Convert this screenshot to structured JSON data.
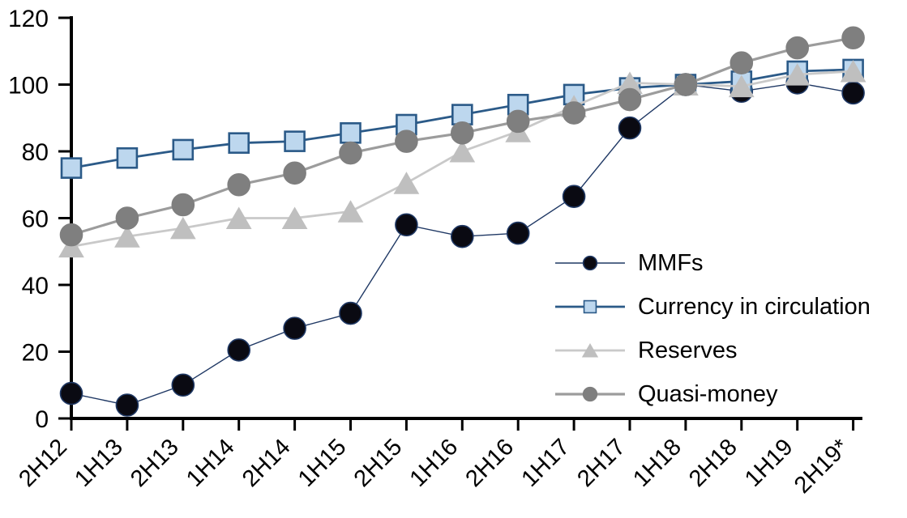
{
  "chart_data": {
    "type": "line",
    "categories": [
      "2H12",
      "1H13",
      "2H13",
      "1H14",
      "2H14",
      "1H15",
      "2H15",
      "1H16",
      "2H16",
      "1H17",
      "2H17",
      "1H18",
      "2H18",
      "1H19",
      "2H19*"
    ],
    "series": [
      {
        "name": "MMFs",
        "marker": "circle",
        "line_color": "#1F3864",
        "marker_fill": "#0A0A12",
        "marker_stroke": "#1F3864",
        "line_width": 1.4,
        "values": [
          7.5,
          4,
          10,
          20.5,
          27,
          31.5,
          58,
          54.5,
          55.5,
          66.5,
          87,
          100,
          98,
          100.5,
          97.5
        ]
      },
      {
        "name": "Currency in circulation",
        "marker": "square",
        "line_color": "#2B5A88",
        "marker_fill": "#BDD7EE",
        "marker_stroke": "#2B5A88",
        "line_width": 2.8,
        "values": [
          75,
          78,
          80.5,
          82.5,
          83,
          85.5,
          88,
          91,
          94,
          97,
          99,
          100,
          101,
          104,
          104.5
        ]
      },
      {
        "name": "Reserves",
        "marker": "triangle",
        "line_color": "#C9C9C9",
        "marker_fill": "#BFBFBF",
        "marker_stroke": "#BFBFBF",
        "line_width": 2.8,
        "values": [
          51.5,
          54.5,
          57,
          60,
          60,
          62,
          70.5,
          80,
          86,
          93.5,
          100.5,
          100,
          99.5,
          103,
          104
        ]
      },
      {
        "name": "Quasi-money",
        "marker": "circle",
        "line_color": "#9C9C9C",
        "marker_fill": "#7F7F7F",
        "marker_stroke": "#7F7F7F",
        "line_width": 3.2,
        "values": [
          55,
          60,
          64,
          70,
          73.5,
          79.5,
          83,
          85.5,
          89,
          91.5,
          95.5,
          100,
          106.5,
          111,
          114
        ]
      }
    ],
    "ylim": [
      0,
      120
    ],
    "yticks": [
      0,
      20,
      40,
      60,
      80,
      100,
      120
    ],
    "grid": false,
    "legend_position": "inside-right",
    "axis_color": "#000000",
    "background": "#FFFFFF"
  }
}
